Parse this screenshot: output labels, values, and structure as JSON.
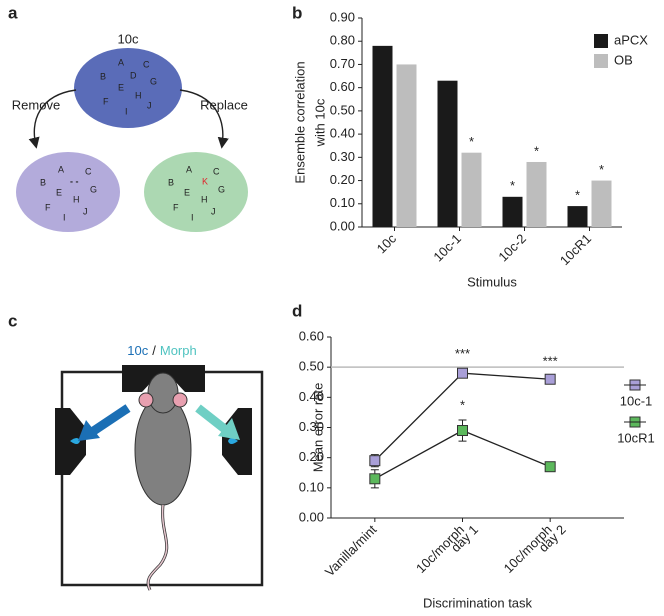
{
  "panel_labels": [
    "a",
    "b",
    "c",
    "d"
  ],
  "panel_a": {
    "top_label": "10c",
    "remove": "Remove",
    "replace": "Replace",
    "top_letters": [
      "A",
      "C",
      "B",
      "D",
      "G",
      "E",
      "H",
      "F",
      "I",
      "J"
    ],
    "left_letters": [
      "A",
      "C",
      "B",
      "G",
      "E",
      "H",
      "F",
      "I",
      "J"
    ],
    "removed_mark": "- -",
    "right_letters": [
      "A",
      "C",
      "B",
      "G",
      "E",
      "H",
      "F",
      "I",
      "J"
    ],
    "replaced_letter": "K"
  },
  "panel_c": {
    "odor_1": "10c",
    "separator": "/",
    "odor_2": "Morph"
  },
  "chart_data": [
    {
      "type": "bar",
      "xlabel": "Stimulus",
      "ylabel": [
        "Ensemble correlation",
        "with 10c"
      ],
      "categories": [
        "10c",
        "10c-1",
        "10c-2",
        "10cR1"
      ],
      "series": [
        {
          "name": "aPCX",
          "color": "#1a1a1a",
          "values": [
            0.78,
            0.63,
            0.13,
            0.09
          ],
          "annotations": [
            null,
            null,
            "*",
            "*"
          ]
        },
        {
          "name": "OB",
          "color": "#bdbdbd",
          "values": [
            0.7,
            0.32,
            0.28,
            0.2
          ],
          "annotations": [
            null,
            "*",
            "*",
            "*"
          ]
        }
      ],
      "ylim": [
        0,
        0.9
      ],
      "yticks": [
        {
          "value": 0,
          "label": "0.00"
        },
        {
          "value": 0.1,
          "label": "0.10"
        },
        {
          "value": 0.2,
          "label": "0.20"
        },
        {
          "value": 0.3,
          "label": "0.30"
        },
        {
          "value": 0.4,
          "label": "0.40"
        },
        {
          "value": 0.5,
          "label": "0.50"
        },
        {
          "value": 0.6,
          "label": "0.60"
        },
        {
          "value": 0.7,
          "label": "0.70"
        },
        {
          "value": 0.8,
          "label": "0.80"
        },
        {
          "value": 0.9,
          "label": "0.90"
        }
      ],
      "legend": "top-right"
    },
    {
      "type": "line",
      "xlabel": "Discrimination task",
      "ylabel": [
        "Mean error rate"
      ],
      "categories": [
        [
          "Vanilla/mint"
        ],
        [
          "10c/morph",
          "day 1"
        ],
        [
          "10c/morph",
          "day 2"
        ]
      ],
      "series": [
        {
          "name": "10c-1",
          "color": "#a99fd8",
          "values": [
            0.19,
            0.48,
            0.46
          ],
          "errors": [
            0.02,
            0.015,
            0.01
          ],
          "annotations": [
            null,
            "***",
            "***"
          ]
        },
        {
          "name": "10cR1",
          "color": "#5cb85c",
          "values": [
            0.13,
            0.29,
            0.17
          ],
          "errors": [
            0.03,
            0.035,
            0.015
          ],
          "annotations": [
            null,
            "*",
            null
          ]
        }
      ],
      "reference_line": 0.5,
      "ylim": [
        0,
        0.6
      ],
      "yticks": [
        {
          "value": 0,
          "label": "0.00"
        },
        {
          "value": 0.1,
          "label": "0.10"
        },
        {
          "value": 0.2,
          "label": "0.20"
        },
        {
          "value": 0.3,
          "label": "0.30"
        },
        {
          "value": 0.4,
          "label": "0.40"
        },
        {
          "value": 0.5,
          "label": "0.50"
        },
        {
          "value": 0.6,
          "label": "0.60"
        }
      ],
      "legend": "right"
    }
  ]
}
